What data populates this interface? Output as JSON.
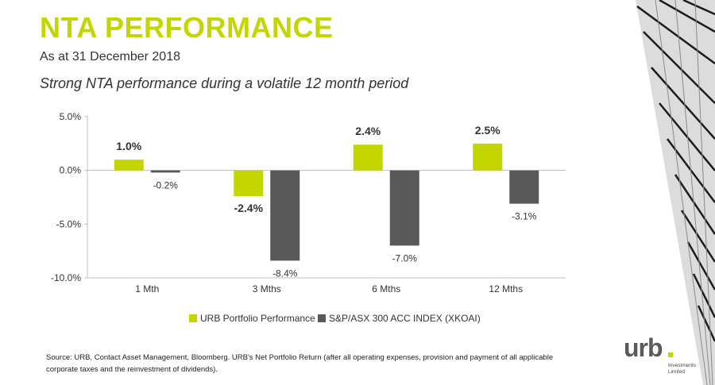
{
  "slide": {
    "title": "NTA PERFORMANCE",
    "date": "As at 31 December 2018",
    "subtitle": "Strong NTA performance during a volatile 12 month period",
    "source": "Source: URB, Contact Asset Management, Bloomberg. URB's Net Portfolio Return (after all operating expenses, provision and payment of all applicable corporate taxes  and the reinvestment of dividends)."
  },
  "logo": {
    "text": "urb",
    "line1": "Investments",
    "line2": "Limited"
  },
  "colors": {
    "accent": "#c4d600",
    "index": "#595959",
    "text": "#333333"
  },
  "chart_data": {
    "type": "bar",
    "categories": [
      "1 Mth",
      "3 Mths",
      "6 Mths",
      "12 Mths"
    ],
    "series": [
      {
        "name": "URB Portfolio Performance",
        "values": [
          1.0,
          -2.4,
          2.4,
          2.5
        ],
        "labels": [
          "1.0%",
          "-2.4%",
          "2.4%",
          "2.5%"
        ],
        "color": "#c4d600"
      },
      {
        "name": "S&P/ASX 300 ACC INDEX (XKOAI)",
        "values": [
          -0.2,
          -8.4,
          -7.0,
          -3.1
        ],
        "labels": [
          "-0.2%",
          "-8.4%",
          "-7.0%",
          "-3.1%"
        ],
        "color": "#595959"
      }
    ],
    "ylim": [
      -10,
      5
    ],
    "yticks": [
      5,
      0,
      -5,
      -10
    ],
    "ytick_labels": [
      "5.0%",
      "0.0%",
      "-5.0%",
      "-10.0%"
    ],
    "legend": "bottom",
    "grid": false
  }
}
